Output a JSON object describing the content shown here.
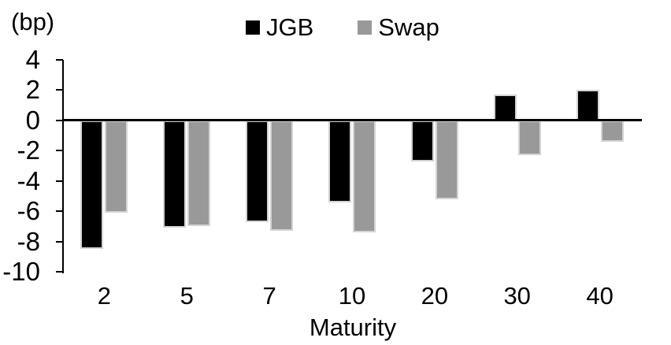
{
  "chart_data": {
    "type": "bar",
    "title": "",
    "unit_label": "(bp)",
    "xlabel": "Maturity",
    "ylabel": "",
    "categories": [
      "2",
      "5",
      "7",
      "10",
      "20",
      "30",
      "40"
    ],
    "series": [
      {
        "name": "JGB",
        "color": "#000000",
        "values": [
          -8.5,
          -7.1,
          -6.7,
          -5.4,
          -2.7,
          1.7,
          2.0
        ]
      },
      {
        "name": "Swap",
        "color": "#999999",
        "values": [
          -6.1,
          -7.0,
          -7.3,
          -7.4,
          -5.2,
          -2.3,
          -1.4
        ]
      }
    ],
    "y_ticks": [
      4,
      2,
      0,
      -2,
      -4,
      -6,
      -8,
      -10
    ],
    "ylim": [
      -10,
      4
    ],
    "grid": false,
    "legend_position": "top-center",
    "colors": {
      "background": "#ffffff",
      "axis": "#000000",
      "bar_outline": "#d4d4d4"
    }
  }
}
